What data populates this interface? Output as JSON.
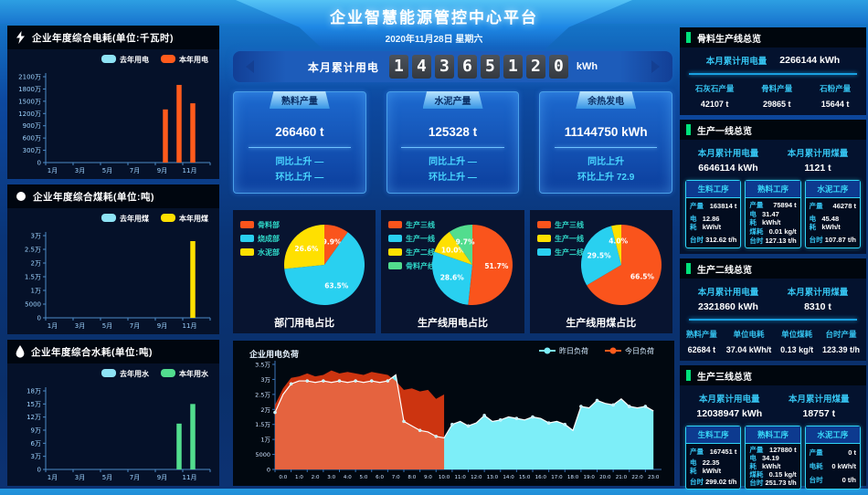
{
  "header": {
    "title": "企业智慧能源管控中心平台",
    "date": "2020年11月28日 星期六"
  },
  "counter": {
    "label": "本月累计用电",
    "digits": [
      "1",
      "4",
      "3",
      "6",
      "5",
      "1",
      "2",
      "0"
    ],
    "unit": "kWh"
  },
  "kpi_cards": [
    {
      "title": "熟料产量",
      "value": "266460 t",
      "yoy": "同比上升 —",
      "mom": "环比上升 —"
    },
    {
      "title": "水泥产量",
      "value": "125328 t",
      "yoy": "同比上升 —",
      "mom": "环比上升 —"
    },
    {
      "title": "余热发电",
      "value": "11144750 kWh",
      "yoy": "同比上升",
      "mom": "环比上升 72.9"
    }
  ],
  "left_panels": [
    {
      "title": "企业年度综合电耗(单位:千瓦时)",
      "icon": "lightning-icon"
    },
    {
      "title": "企业年度综合煤耗(单位:吨)",
      "icon": "coal-icon"
    },
    {
      "title": "企业年度综合水耗(单位:吨)",
      "icon": "water-drop-icon"
    }
  ],
  "pie_captions": [
    "部门用电占比",
    "生产线用电占比",
    "生产线用煤占比"
  ],
  "load_chart_title": "企业用电负荷",
  "right_panels": [
    {
      "title": "骨料生产线总览",
      "totals": [
        {
          "label": "本月累计用电量",
          "value": "2266144 kWh"
        }
      ],
      "stats": [
        {
          "label": "石灰石产量",
          "value": "42107 t"
        },
        {
          "label": "骨料产量",
          "value": "29865 t"
        },
        {
          "label": "石粉产量",
          "value": "15644 t"
        }
      ]
    },
    {
      "title": "生产一线总览",
      "totals": [
        {
          "label": "本月累计用电量",
          "value": "6646114 kWh"
        },
        {
          "label": "本月累计用煤量",
          "value": "1121 t"
        }
      ],
      "process_cards": [
        {
          "title": "生料工序",
          "rows": [
            [
              "产量",
              "163814 t"
            ],
            [
              "电耗",
              "12.86 kWh/t"
            ],
            [
              "台时",
              "312.62 t/h"
            ]
          ]
        },
        {
          "title": "熟料工序",
          "rows": [
            [
              "产量",
              "75894 t"
            ],
            [
              "电耗",
              "31.47 kWh/t"
            ],
            [
              "煤耗",
              "0.01 kg/t"
            ],
            [
              "台时",
              "127.13 t/h"
            ]
          ]
        },
        {
          "title": "水泥工序",
          "rows": [
            [
              "产量",
              "46278 t"
            ],
            [
              "电耗",
              "45.48 kWh/t"
            ],
            [
              "台时",
              "107.87 t/h"
            ]
          ]
        }
      ]
    },
    {
      "title": "生产二线总览",
      "totals": [
        {
          "label": "本月累计用电量",
          "value": "2321860 kWh"
        },
        {
          "label": "本月累计用煤量",
          "value": "8310 t"
        }
      ],
      "stats": [
        {
          "label": "熟料产量",
          "value": "62684 t"
        },
        {
          "label": "单位电耗",
          "value": "37.04 kWh/t"
        },
        {
          "label": "单位煤耗",
          "value": "0.13 kg/t"
        },
        {
          "label": "台时产量",
          "value": "123.39 t/h"
        }
      ]
    },
    {
      "title": "生产三线总览",
      "totals": [
        {
          "label": "本月累计用电量",
          "value": "12038947 kWh"
        },
        {
          "label": "本月累计用煤量",
          "value": "18757 t"
        }
      ],
      "process_cards": [
        {
          "title": "生料工序",
          "rows": [
            [
              "产量",
              "167451 t"
            ],
            [
              "电耗",
              "22.35 kWh/t"
            ],
            [
              "台时",
              "299.02 t/h"
            ]
          ]
        },
        {
          "title": "熟料工序",
          "rows": [
            [
              "产量",
              "127880 t"
            ],
            [
              "电耗",
              "34.19 kWh/t"
            ],
            [
              "煤耗",
              "0.15 kg/t"
            ],
            [
              "台时",
              "251.73 t/h"
            ]
          ]
        },
        {
          "title": "水泥工序",
          "rows": [
            [
              "产量",
              "0 t"
            ],
            [
              "电耗",
              "0 kWh/t"
            ],
            [
              "台时",
              "0 t/h"
            ]
          ]
        }
      ]
    }
  ],
  "colors": {
    "orange": "#fa541c",
    "yellow": "#ffe000",
    "green": "#52dd8e",
    "cyan": "#29d0f0",
    "light_cyan": "#8ee3f5",
    "accent_cyan": "#35c3f0",
    "legend_teal": "#2fd8c8",
    "axis": "#4d8cc8",
    "tick_text": "#9fd4ff",
    "panel_bg": "#051129"
  },
  "chart_data": [
    {
      "type": "bar",
      "title": "企业年度综合电耗(单位:千瓦时)",
      "categories": [
        "1月",
        "2月",
        "3月",
        "4月",
        "5月",
        "6月",
        "7月",
        "8月",
        "9月",
        "10月",
        "11月",
        "12月"
      ],
      "series": [
        {
          "name": "去年用电",
          "color": "#8ee3f5",
          "values": [
            0,
            0,
            0,
            0,
            0,
            0,
            0,
            0,
            0,
            0,
            0,
            0
          ]
        },
        {
          "name": "本年用电",
          "color": "#ff5b1c",
          "values": [
            0,
            0,
            0,
            0,
            0,
            0,
            0,
            0,
            13000000,
            19000000,
            14500000,
            0
          ]
        }
      ],
      "ylim": [
        0,
        21000000
      ],
      "y_ticks": [
        {
          "v": 0,
          "label": "0"
        },
        {
          "v": 3000000,
          "label": "300万"
        },
        {
          "v": 6000000,
          "label": "600万"
        },
        {
          "v": 9000000,
          "label": "900万"
        },
        {
          "v": 12000000,
          "label": "1200万"
        },
        {
          "v": 15000000,
          "label": "1500万"
        },
        {
          "v": 18000000,
          "label": "1800万"
        },
        {
          "v": 21000000,
          "label": "2100万"
        }
      ]
    },
    {
      "type": "bar",
      "title": "企业年度综合煤耗(单位:吨)",
      "categories": [
        "1月",
        "2月",
        "3月",
        "4月",
        "5月",
        "6月",
        "7月",
        "8月",
        "9月",
        "10月",
        "11月",
        "12月"
      ],
      "series": [
        {
          "name": "去年用煤",
          "color": "#8ee3f5",
          "values": [
            0,
            0,
            0,
            0,
            0,
            0,
            0,
            0,
            0,
            0,
            0,
            0
          ]
        },
        {
          "name": "本年用煤",
          "color": "#ffe000",
          "values": [
            0,
            0,
            0,
            0,
            0,
            0,
            0,
            0,
            0,
            0,
            28000,
            0
          ]
        }
      ],
      "ylim": [
        0,
        30000
      ],
      "y_ticks": [
        {
          "v": 0,
          "label": "0"
        },
        {
          "v": 5000,
          "label": "5000"
        },
        {
          "v": 10000,
          "label": "1万"
        },
        {
          "v": 15000,
          "label": "1.5万"
        },
        {
          "v": 20000,
          "label": "2万"
        },
        {
          "v": 25000,
          "label": "2.5万"
        },
        {
          "v": 30000,
          "label": "3万"
        }
      ]
    },
    {
      "type": "bar",
      "title": "企业年度综合水耗(单位:吨)",
      "categories": [
        "1月",
        "2月",
        "3月",
        "4月",
        "5月",
        "6月",
        "7月",
        "8月",
        "9月",
        "10月",
        "11月",
        "12月"
      ],
      "series": [
        {
          "name": "去年用水",
          "color": "#8ee3f5",
          "values": [
            0,
            0,
            0,
            0,
            0,
            0,
            0,
            0,
            0,
            0,
            0,
            0
          ]
        },
        {
          "name": "本年用水",
          "color": "#52dd8e",
          "values": [
            0,
            0,
            0,
            0,
            0,
            0,
            0,
            0,
            0,
            105000,
            150000,
            0
          ]
        }
      ],
      "ylim": [
        0,
        180000
      ],
      "y_ticks": [
        {
          "v": 0,
          "label": "0"
        },
        {
          "v": 30000,
          "label": "3万"
        },
        {
          "v": 60000,
          "label": "6万"
        },
        {
          "v": 90000,
          "label": "9万"
        },
        {
          "v": 120000,
          "label": "12万"
        },
        {
          "v": 150000,
          "label": "15万"
        },
        {
          "v": 180000,
          "label": "18万"
        }
      ]
    },
    {
      "type": "pie",
      "title": "部门用电占比",
      "legend": [
        {
          "label": "骨料部",
          "color": "#fa541c"
        },
        {
          "label": "烧成部",
          "color": "#29d0f0"
        },
        {
          "label": "水泥部",
          "color": "#ffe000"
        }
      ],
      "slices": [
        {
          "label": "骨料部",
          "value": 9.9,
          "color": "#fa541c"
        },
        {
          "label": "烧成部",
          "value": 63.5,
          "color": "#29d0f0"
        },
        {
          "label": "水泥部",
          "value": 26.6,
          "color": "#ffe000"
        }
      ]
    },
    {
      "type": "pie",
      "title": "生产线用电占比",
      "legend": [
        {
          "label": "生产三线",
          "color": "#fa541c"
        },
        {
          "label": "生产一线",
          "color": "#29d0f0"
        },
        {
          "label": "生产二线",
          "color": "#ffe000"
        },
        {
          "label": "骨料产线",
          "color": "#52dd8e"
        }
      ],
      "slices": [
        {
          "label": "生产三线",
          "value": 51.7,
          "color": "#fa541c"
        },
        {
          "label": "生产一线",
          "value": 28.6,
          "color": "#29d0f0"
        },
        {
          "label": "生产二线",
          "value": 10.0,
          "color": "#ffe000"
        },
        {
          "label": "骨料产线",
          "value": 9.7,
          "color": "#52dd8e"
        }
      ]
    },
    {
      "type": "pie",
      "title": "生产线用煤占比",
      "legend": [
        {
          "label": "生产三线",
          "color": "#fa541c"
        },
        {
          "label": "生产一线",
          "color": "#ffe000"
        },
        {
          "label": "生产二线",
          "color": "#29d0f0"
        }
      ],
      "slices": [
        {
          "label": "生产三线",
          "value": 66.5,
          "color": "#fa541c"
        },
        {
          "label": "生产二线",
          "value": 29.5,
          "color": "#29d0f0"
        },
        {
          "label": "生产一线",
          "value": 4.0,
          "color": "#ffe000"
        }
      ]
    },
    {
      "type": "area",
      "title": "企业用电负荷",
      "xlim": [
        0,
        24
      ],
      "x_step": 0.5,
      "x_labels": [
        "0:0",
        "1:0",
        "2:0",
        "3:0",
        "4:0",
        "5:0",
        "6:0",
        "7:0",
        "8:0",
        "9:0",
        "10:0",
        "11:0",
        "12:0",
        "13:0",
        "14:0",
        "15:0",
        "16:0",
        "17:0",
        "18:0",
        "19:0",
        "20:0",
        "21:0",
        "22:0",
        "23:0"
      ],
      "ylim": [
        0,
        35000
      ],
      "y_ticks": [
        {
          "v": 0,
          "label": "0"
        },
        {
          "v": 5000,
          "label": "5000"
        },
        {
          "v": 10000,
          "label": "1万"
        },
        {
          "v": 15000,
          "label": "1.5万"
        },
        {
          "v": 20000,
          "label": "2万"
        },
        {
          "v": 25000,
          "label": "2.5万"
        },
        {
          "v": 30000,
          "label": "3万"
        },
        {
          "v": 35000,
          "label": "3.5万"
        }
      ],
      "series": [
        {
          "name": "昨日负荷",
          "color": "#7deef8",
          "values": [
            19000,
            25000,
            28500,
            29500,
            29500,
            29000,
            29500,
            29000,
            29500,
            29000,
            29500,
            29000,
            29500,
            29000,
            29500,
            31500,
            16000,
            14500,
            13000,
            12500,
            11000,
            10500,
            15000,
            16000,
            14500,
            15500,
            18000,
            16000,
            16500,
            17500,
            17000,
            16500,
            17500,
            17000,
            15500,
            16000,
            15000,
            13000,
            21000,
            20500,
            23000,
            22000,
            21500,
            23500,
            21000,
            20500,
            21000,
            19500
          ]
        },
        {
          "name": "今日负荷",
          "color": "#ff4010",
          "values": [
            21500,
            27000,
            30500,
            31000,
            32000,
            31000,
            31500,
            33000,
            32000,
            32500,
            32000,
            31500,
            32500,
            32000,
            31500,
            29500,
            26500,
            27000,
            26000,
            26500,
            23500,
            25000
          ]
        }
      ]
    }
  ]
}
